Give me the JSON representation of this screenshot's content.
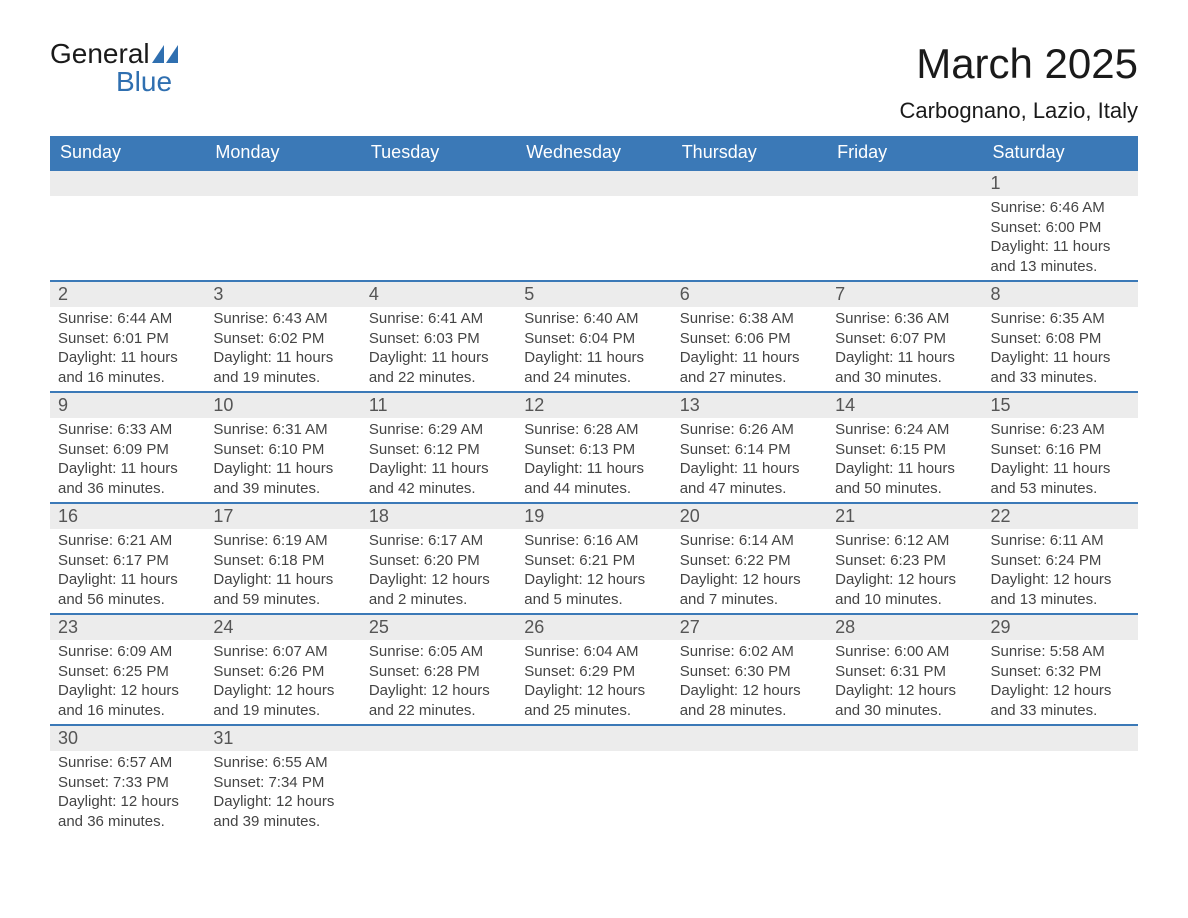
{
  "logo": {
    "text_top": "General",
    "text_bottom": "Blue",
    "shape_color": "#2f6fb0"
  },
  "title": "March 2025",
  "location": "Carbognano, Lazio, Italy",
  "colors": {
    "header_bg": "#3b79b7",
    "header_text": "#ffffff",
    "daynum_bg": "#ececec",
    "row_border": "#3b79b7",
    "body_text": "#444444",
    "page_bg": "#ffffff"
  },
  "typography": {
    "title_fontsize": 42,
    "location_fontsize": 22,
    "dayheader_fontsize": 18,
    "daynum_fontsize": 18,
    "cell_fontsize": 15,
    "font_family": "Arial"
  },
  "day_headers": [
    "Sunday",
    "Monday",
    "Tuesday",
    "Wednesday",
    "Thursday",
    "Friday",
    "Saturday"
  ],
  "weeks": [
    [
      null,
      null,
      null,
      null,
      null,
      null,
      {
        "n": "1",
        "sunrise": "6:46 AM",
        "sunset": "6:00 PM",
        "daylight": "11 hours and 13 minutes."
      }
    ],
    [
      {
        "n": "2",
        "sunrise": "6:44 AM",
        "sunset": "6:01 PM",
        "daylight": "11 hours and 16 minutes."
      },
      {
        "n": "3",
        "sunrise": "6:43 AM",
        "sunset": "6:02 PM",
        "daylight": "11 hours and 19 minutes."
      },
      {
        "n": "4",
        "sunrise": "6:41 AM",
        "sunset": "6:03 PM",
        "daylight": "11 hours and 22 minutes."
      },
      {
        "n": "5",
        "sunrise": "6:40 AM",
        "sunset": "6:04 PM",
        "daylight": "11 hours and 24 minutes."
      },
      {
        "n": "6",
        "sunrise": "6:38 AM",
        "sunset": "6:06 PM",
        "daylight": "11 hours and 27 minutes."
      },
      {
        "n": "7",
        "sunrise": "6:36 AM",
        "sunset": "6:07 PM",
        "daylight": "11 hours and 30 minutes."
      },
      {
        "n": "8",
        "sunrise": "6:35 AM",
        "sunset": "6:08 PM",
        "daylight": "11 hours and 33 minutes."
      }
    ],
    [
      {
        "n": "9",
        "sunrise": "6:33 AM",
        "sunset": "6:09 PM",
        "daylight": "11 hours and 36 minutes."
      },
      {
        "n": "10",
        "sunrise": "6:31 AM",
        "sunset": "6:10 PM",
        "daylight": "11 hours and 39 minutes."
      },
      {
        "n": "11",
        "sunrise": "6:29 AM",
        "sunset": "6:12 PM",
        "daylight": "11 hours and 42 minutes."
      },
      {
        "n": "12",
        "sunrise": "6:28 AM",
        "sunset": "6:13 PM",
        "daylight": "11 hours and 44 minutes."
      },
      {
        "n": "13",
        "sunrise": "6:26 AM",
        "sunset": "6:14 PM",
        "daylight": "11 hours and 47 minutes."
      },
      {
        "n": "14",
        "sunrise": "6:24 AM",
        "sunset": "6:15 PM",
        "daylight": "11 hours and 50 minutes."
      },
      {
        "n": "15",
        "sunrise": "6:23 AM",
        "sunset": "6:16 PM",
        "daylight": "11 hours and 53 minutes."
      }
    ],
    [
      {
        "n": "16",
        "sunrise": "6:21 AM",
        "sunset": "6:17 PM",
        "daylight": "11 hours and 56 minutes."
      },
      {
        "n": "17",
        "sunrise": "6:19 AM",
        "sunset": "6:18 PM",
        "daylight": "11 hours and 59 minutes."
      },
      {
        "n": "18",
        "sunrise": "6:17 AM",
        "sunset": "6:20 PM",
        "daylight": "12 hours and 2 minutes."
      },
      {
        "n": "19",
        "sunrise": "6:16 AM",
        "sunset": "6:21 PM",
        "daylight": "12 hours and 5 minutes."
      },
      {
        "n": "20",
        "sunrise": "6:14 AM",
        "sunset": "6:22 PM",
        "daylight": "12 hours and 7 minutes."
      },
      {
        "n": "21",
        "sunrise": "6:12 AM",
        "sunset": "6:23 PM",
        "daylight": "12 hours and 10 minutes."
      },
      {
        "n": "22",
        "sunrise": "6:11 AM",
        "sunset": "6:24 PM",
        "daylight": "12 hours and 13 minutes."
      }
    ],
    [
      {
        "n": "23",
        "sunrise": "6:09 AM",
        "sunset": "6:25 PM",
        "daylight": "12 hours and 16 minutes."
      },
      {
        "n": "24",
        "sunrise": "6:07 AM",
        "sunset": "6:26 PM",
        "daylight": "12 hours and 19 minutes."
      },
      {
        "n": "25",
        "sunrise": "6:05 AM",
        "sunset": "6:28 PM",
        "daylight": "12 hours and 22 minutes."
      },
      {
        "n": "26",
        "sunrise": "6:04 AM",
        "sunset": "6:29 PM",
        "daylight": "12 hours and 25 minutes."
      },
      {
        "n": "27",
        "sunrise": "6:02 AM",
        "sunset": "6:30 PM",
        "daylight": "12 hours and 28 minutes."
      },
      {
        "n": "28",
        "sunrise": "6:00 AM",
        "sunset": "6:31 PM",
        "daylight": "12 hours and 30 minutes."
      },
      {
        "n": "29",
        "sunrise": "5:58 AM",
        "sunset": "6:32 PM",
        "daylight": "12 hours and 33 minutes."
      }
    ],
    [
      {
        "n": "30",
        "sunrise": "6:57 AM",
        "sunset": "7:33 PM",
        "daylight": "12 hours and 36 minutes."
      },
      {
        "n": "31",
        "sunrise": "6:55 AM",
        "sunset": "7:34 PM",
        "daylight": "12 hours and 39 minutes."
      },
      null,
      null,
      null,
      null,
      null
    ]
  ],
  "labels": {
    "sunrise": "Sunrise: ",
    "sunset": "Sunset: ",
    "daylight": "Daylight: "
  }
}
